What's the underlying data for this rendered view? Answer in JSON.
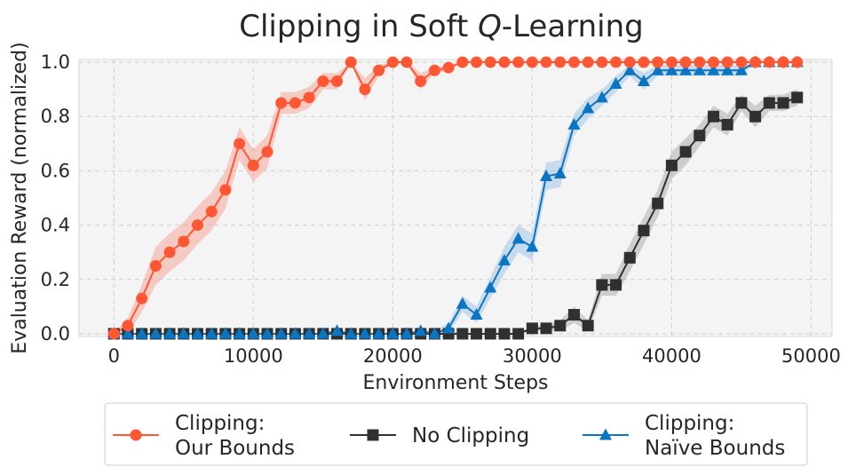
{
  "chart_data": {
    "type": "line",
    "title_parts": [
      "Clipping in Soft ",
      "Q",
      "-Learning"
    ],
    "xlabel": "Environment Steps",
    "ylabel": "Evaluation Reward (normalized)",
    "xlim": [
      -2500,
      51500
    ],
    "ylim": [
      -0.01,
      1.01
    ],
    "x_ticks": [
      0,
      10000,
      20000,
      30000,
      40000,
      50000
    ],
    "x_tick_labels": [
      "0",
      "10000",
      "20000",
      "30000",
      "40000",
      "50000"
    ],
    "y_ticks": [
      0.0,
      0.2,
      0.4,
      0.6,
      0.8,
      1.0
    ],
    "y_tick_labels": [
      "0.0",
      "0.2",
      "0.4",
      "0.6",
      "0.8",
      "1.0"
    ],
    "grid": true,
    "legend_position": "bottom-outside",
    "x": [
      0,
      1000,
      2000,
      3000,
      4000,
      5000,
      6000,
      7000,
      8000,
      9000,
      10000,
      11000,
      12000,
      13000,
      14000,
      15000,
      16000,
      17000,
      18000,
      19000,
      20000,
      21000,
      22000,
      23000,
      24000,
      25000,
      26000,
      27000,
      28000,
      29000,
      30000,
      31000,
      32000,
      33000,
      34000,
      35000,
      36000,
      37000,
      38000,
      39000,
      40000,
      41000,
      42000,
      43000,
      44000,
      45000,
      46000,
      47000,
      48000,
      49000
    ],
    "series": [
      {
        "name_lines": [
          "Clipping:",
          "Our Bounds"
        ],
        "color": "#FF5733",
        "band_color": "#F5A092",
        "marker": "circle",
        "values": [
          0.0,
          0.03,
          0.13,
          0.25,
          0.3,
          0.34,
          0.4,
          0.45,
          0.53,
          0.7,
          0.62,
          0.67,
          0.85,
          0.85,
          0.87,
          0.93,
          0.93,
          1.0,
          0.9,
          0.97,
          1.0,
          1.0,
          0.93,
          0.97,
          0.98,
          1.0,
          1.0,
          1.0,
          1.0,
          1.0,
          1.0,
          1.0,
          1.0,
          1.0,
          1.0,
          1.0,
          1.0,
          1.0,
          1.0,
          1.0,
          1.0,
          1.0,
          1.0,
          1.0,
          1.0,
          1.0,
          1.0,
          1.0,
          1.0,
          1.0
        ],
        "band": [
          0.0,
          0.03,
          0.05,
          0.07,
          0.07,
          0.07,
          0.07,
          0.07,
          0.07,
          0.06,
          0.06,
          0.06,
          0.04,
          0.04,
          0.04,
          0.03,
          0.03,
          0.0,
          0.04,
          0.02,
          0.0,
          0.0,
          0.03,
          0.01,
          0.01,
          0.0,
          0.0,
          0.0,
          0.0,
          0.0,
          0.0,
          0.0,
          0.0,
          0.0,
          0.0,
          0.0,
          0.0,
          0.0,
          0.0,
          0.0,
          0.0,
          0.0,
          0.0,
          0.0,
          0.0,
          0.0,
          0.0,
          0.0,
          0.0,
          0.0
        ]
      },
      {
        "name_lines": [
          "No Clipping"
        ],
        "color": "#303030",
        "band_color": "#A8A8A8",
        "marker": "square",
        "values": [
          0.0,
          0.0,
          0.0,
          0.0,
          0.0,
          0.0,
          0.0,
          0.0,
          0.0,
          0.0,
          0.0,
          0.0,
          0.0,
          0.0,
          0.0,
          0.0,
          0.0,
          0.0,
          0.0,
          0.0,
          0.0,
          0.0,
          0.0,
          0.0,
          0.0,
          0.0,
          0.0,
          0.0,
          0.0,
          0.0,
          0.02,
          0.02,
          0.03,
          0.07,
          0.03,
          0.18,
          0.18,
          0.28,
          0.38,
          0.48,
          0.62,
          0.67,
          0.73,
          0.8,
          0.77,
          0.85,
          0.8,
          0.85,
          0.85,
          0.87
        ],
        "band": [
          0.0,
          0.0,
          0.0,
          0.0,
          0.0,
          0.0,
          0.0,
          0.0,
          0.0,
          0.0,
          0.0,
          0.0,
          0.0,
          0.0,
          0.0,
          0.0,
          0.0,
          0.0,
          0.0,
          0.0,
          0.0,
          0.0,
          0.0,
          0.0,
          0.0,
          0.0,
          0.0,
          0.0,
          0.0,
          0.0,
          0.01,
          0.01,
          0.02,
          0.03,
          0.02,
          0.04,
          0.04,
          0.05,
          0.05,
          0.05,
          0.05,
          0.05,
          0.04,
          0.04,
          0.04,
          0.03,
          0.04,
          0.03,
          0.03,
          0.03
        ]
      },
      {
        "name_lines": [
          "Clipping:",
          "Naïve Bounds"
        ],
        "color": "#0A75C2",
        "band_color": "#9CC2E5",
        "marker": "triangle",
        "values": [
          0.0,
          0.0,
          0.0,
          0.0,
          0.0,
          0.0,
          0.0,
          0.0,
          0.0,
          0.0,
          0.0,
          0.0,
          0.0,
          0.0,
          0.0,
          0.0,
          0.01,
          0.0,
          0.0,
          0.0,
          0.0,
          0.0,
          0.01,
          0.0,
          0.02,
          0.11,
          0.07,
          0.17,
          0.27,
          0.35,
          0.32,
          0.58,
          0.59,
          0.77,
          0.83,
          0.87,
          0.92,
          0.97,
          0.93,
          0.97,
          0.97,
          0.97,
          0.97,
          0.97,
          0.97,
          0.97,
          1.0,
          1.0,
          1.0,
          1.0
        ],
        "band": [
          0.0,
          0.0,
          0.0,
          0.0,
          0.0,
          0.0,
          0.0,
          0.0,
          0.0,
          0.0,
          0.0,
          0.0,
          0.0,
          0.0,
          0.0,
          0.0,
          0.01,
          0.0,
          0.0,
          0.0,
          0.0,
          0.0,
          0.01,
          0.01,
          0.02,
          0.03,
          0.03,
          0.04,
          0.05,
          0.05,
          0.05,
          0.05,
          0.05,
          0.04,
          0.04,
          0.03,
          0.03,
          0.02,
          0.03,
          0.02,
          0.02,
          0.02,
          0.02,
          0.02,
          0.02,
          0.02,
          0.0,
          0.0,
          0.0,
          0.0
        ]
      }
    ]
  }
}
